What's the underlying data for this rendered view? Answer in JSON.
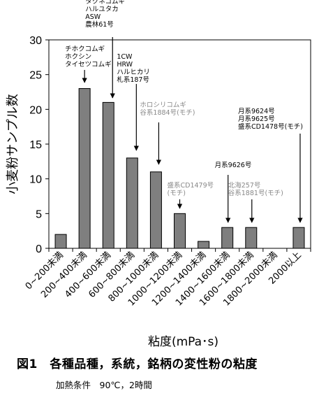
{
  "chart_data": {
    "type": "bar",
    "categories": [
      "0~200未満",
      "200~400未満",
      "400~600未満",
      "600~800未満",
      "800~1000未満",
      "1000~1200未満",
      "1200~1400未満",
      "1400~1600未満",
      "1600~1800未満",
      "1800~2000未満",
      "2000以上"
    ],
    "values": [
      2,
      23,
      21,
      13,
      11,
      5,
      1,
      3,
      3,
      0,
      3
    ],
    "xlabel": "粘度(mPa･s)",
    "ylabel": "小麦粉サンプル数",
    "ylim": [
      0,
      30
    ],
    "yticks": [
      0,
      5,
      10,
      15,
      20,
      25,
      30
    ],
    "bar_color": "#7f7f7f",
    "annotations": [
      {
        "category": "200~400未満",
        "lines": [
          "チホクコムギ",
          "ホクシン",
          "タイセツコムギ"
        ],
        "color": "#000000"
      },
      {
        "category": "400~600未満",
        "lines": [
          "タクネコムギ",
          "ハルユタカ",
          "ASW",
          "農林61号"
        ],
        "color": "#000000"
      },
      {
        "category": "600~800未満",
        "lines": [
          "1CW",
          "HRW",
          "ハルヒカリ",
          "札系187号"
        ],
        "color": "#000000"
      },
      {
        "category": "800~1000未満",
        "lines": [
          "ホロシリコムギ",
          "谷系1884号(モチ)"
        ],
        "color": "#888888"
      },
      {
        "category": "1000~1200未満",
        "lines": [
          "盛系CD1479号",
          "(モチ)"
        ],
        "color": "#888888"
      },
      {
        "category": "1400~1600未満",
        "lines": [
          "月系9626号"
        ],
        "color": "#000000"
      },
      {
        "category": "1600~1800未満",
        "lines": [
          "北海257号",
          "谷系1881号(モチ)"
        ],
        "color": "#888888"
      },
      {
        "category": "2000以上",
        "lines": [
          "月系9624号",
          "月系9625号",
          "盛系CD1478号(モチ)"
        ],
        "color": "#000000"
      }
    ]
  },
  "caption": {
    "title": "図1　各種品種，系統，銘柄の変性粉の粘度",
    "subtitle": "加熱条件　90℃，2時間"
  }
}
